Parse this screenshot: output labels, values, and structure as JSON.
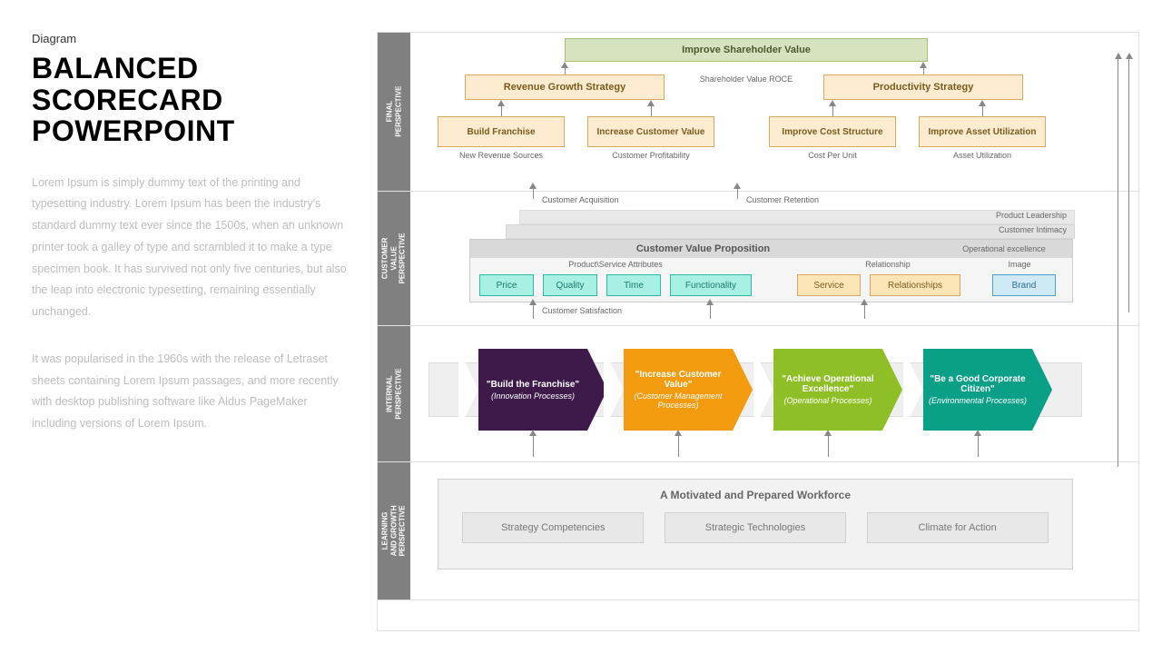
{
  "eyebrow": "Diagram",
  "title": "BALANCED SCORECARD POWERPOINT",
  "para1": "Lorem Ipsum is simply dummy text of the printing and typesetting industry. Lorem Ipsum has been the industry's standard dummy text ever since the 1500s, when an unknown printer took a galley of type and scrambled it to make a type specimen book. It has survived not only five centuries, but also the leap into electronic typesetting, remaining essentially unchanged.",
  "para2": "It was popularised in the 1960s with the release of Letraset sheets containing Lorem Ipsum passages, and more recently with desktop publishing software like Aldus PageMaker including versions of Lorem Ipsum.",
  "rows": {
    "final": "FINAL PERSPECTIVE",
    "cust": "CUSTOMER VALUE PERSPECTIVE",
    "internal": "INTERNAL PERSPECTIVE",
    "learn": "LEARNING AND GROWTH PERSPECTIVE"
  },
  "final": {
    "top": "Improve Shareholder Value",
    "center": "Shareholder Value ROCE",
    "midL": "Revenue Growth Strategy",
    "midR": "Productivity Strategy",
    "b1": "Build Franchise",
    "b2": "Increase Customer Value",
    "b3": "Improve Cost Structure",
    "b4": "Improve Asset Utilization",
    "s1": "New Revenue Sources",
    "s2": "Customer Profitability",
    "s3": "Cost Per Unit",
    "s4": "Asset Utilization",
    "colors": {
      "topFill": "#d7e3bf",
      "topBorder": "#a7bf78",
      "midFill": "#fdeccf",
      "midBorder": "#d9a85c",
      "botFill": "#fdeccf",
      "botBorder": "#d9a85c"
    }
  },
  "cust": {
    "acq": "Customer Acquisition",
    "ret": "Customer Retention",
    "layers": {
      "l1": "Product Leadership",
      "l2": "Customer Intimacy",
      "l3": "Operational excellence"
    },
    "cvp_title": "Customer Value Proposition",
    "group1": "Product\\Service Attributes",
    "group2": "Relationship",
    "group3": "Image",
    "a1": "Price",
    "a2": "Quality",
    "a3": "Time",
    "a4": "Functionality",
    "a5": "Service",
    "a6": "Relationships",
    "a7": "Brand",
    "sat": "Customer Satisfaction",
    "colors": {
      "attrFill": "#a8efe4",
      "attrBorder": "#2fb9a5",
      "relFill": "#fbe5b7",
      "relBorder": "#d9a85c",
      "brandFill": "#cfe9f5",
      "brandBorder": "#4aa3cc",
      "headerFill": "#d9d9d9"
    }
  },
  "internal": {
    "c1": {
      "t1": "\"Build the Franchise\"",
      "t2": "(Innovation Processes)",
      "color": "#3d1a4a"
    },
    "c2": {
      "t1": "\"Increase Customer Value\"",
      "t2": "(Customer Management Processes)",
      "color": "#f29b0f"
    },
    "c3": {
      "t1": "\"Achieve Operational Excellence\"",
      "t2": "(Operational Processes)",
      "color": "#8fbf26"
    },
    "c4": {
      "t1": "\"Be a Good Corporate Citizen\"",
      "t2": "(Environmental Processes)",
      "color": "#0a9f87"
    }
  },
  "learn": {
    "title": "A Motivated and Prepared Workforce",
    "b1": "Strategy Competencies",
    "b2": "Strategic Technologies",
    "b3": "Climate for Action",
    "colors": {
      "panelFill": "#f2f2f2",
      "panelBorder": "#d0d0d0",
      "boxFill": "#e8e8e8",
      "boxBorder": "#cfcfcf"
    }
  }
}
